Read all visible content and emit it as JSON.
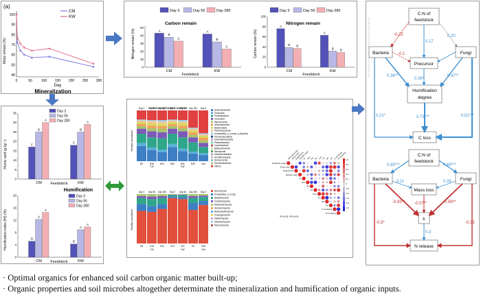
{
  "panel_letter": "(a)",
  "mineralization": {
    "title": "Mineralization",
    "ylabel": "Mass remain (%)",
    "xlabel": "Day",
    "legend": [
      "CM",
      "KW"
    ],
    "colors": {
      "CM": "#7a7ae0",
      "KW": "#e06a82"
    },
    "chart_data": {
      "type": "line",
      "x": [
        0,
        3,
        14,
        28,
        56,
        120,
        280
      ],
      "xticks": [
        0,
        50,
        100,
        150,
        200,
        250,
        300
      ],
      "yticks": [
        40,
        50,
        60,
        70,
        80,
        90,
        100
      ],
      "series": [
        {
          "name": "CM",
          "values": [
            100,
            72,
            64,
            60,
            57,
            58,
            48
          ]
        },
        {
          "name": "KW",
          "values": [
            100,
            77,
            71,
            67,
            64,
            66,
            51
          ]
        }
      ]
    }
  },
  "carbon_remain": {
    "title": "Carbon remain",
    "ylabel": "Nitrogen remain (%)",
    "xlabel": "Feedstock",
    "legend": [
      "Day 3",
      "Day 56",
      "Day 280"
    ],
    "chart_data": {
      "type": "bar",
      "categories": [
        "CM",
        "KW"
      ],
      "yticks": [
        0,
        10,
        20,
        30,
        40,
        50
      ],
      "series": [
        {
          "name": "Day 3",
          "values": [
            43,
            42
          ]
        },
        {
          "name": "Day 56",
          "values": [
            38,
            32
          ]
        },
        {
          "name": "Day 280",
          "values": [
            33,
            23
          ]
        }
      ],
      "letters": [
        [
          "A",
          "B",
          "C"
        ],
        [
          "A",
          "B",
          "C"
        ]
      ]
    }
  },
  "nitrogen_remain": {
    "title": "Nitrogen remain",
    "ylabel": "Carbon remain (%)",
    "xlabel": "Feedstock",
    "legend": [
      "Day 3",
      "Day 56",
      "Day 280"
    ],
    "chart_data": {
      "type": "bar",
      "categories": [
        "CM",
        "KW"
      ],
      "yticks": [
        0,
        20,
        40,
        60,
        80,
        100
      ],
      "series": [
        {
          "name": "Day 3",
          "values": [
            76,
            63
          ]
        },
        {
          "name": "Day 56",
          "values": [
            39,
            32
          ]
        },
        {
          "name": "Day 280",
          "values": [
            37,
            29
          ]
        }
      ],
      "letters": [
        [
          "A",
          "B",
          "B"
        ],
        [
          "A",
          "B",
          "B"
        ]
      ]
    }
  },
  "humic": {
    "ylabel": "Humic acid (g kg⁻¹)",
    "xlabel": "Feedstock",
    "legend": [
      "Day 3",
      "Day 56",
      "Day 280"
    ],
    "chart_data": {
      "type": "bar",
      "categories": [
        "CM",
        "KW"
      ],
      "yticks": [
        0,
        5,
        10,
        15,
        20,
        25,
        30,
        35
      ],
      "series": [
        {
          "name": "Day 3",
          "values": [
            17,
            18
          ]
        },
        {
          "name": "Day 56",
          "values": [
            25,
            25
          ]
        },
        {
          "name": "Day 280",
          "values": [
            30,
            29
          ]
        }
      ],
      "letters": [
        [
          "C",
          "B",
          "A"
        ],
        [
          "C",
          "B",
          "A"
        ]
      ]
    }
  },
  "humification": {
    "title": "Humification",
    "ylabel": "Humification index (HI) (%)",
    "xlabel": "Feedstock",
    "legend": [
      "Day 3",
      "Day 56",
      "Day 280"
    ],
    "chart_data": {
      "type": "bar",
      "categories": [
        "CM",
        "KW"
      ],
      "yticks": [
        0,
        4,
        8,
        12,
        16,
        20
      ],
      "series": [
        {
          "name": "Day 3",
          "values": [
            5.2,
            4.3
          ]
        },
        {
          "name": "Day 56",
          "values": [
            12.3,
            8.9
          ]
        },
        {
          "name": "Day 280",
          "values": [
            14.5,
            9.8
          ]
        }
      ],
      "letters": [
        [
          "B",
          "A",
          "A"
        ],
        [
          "B",
          "A",
          "A"
        ]
      ]
    }
  },
  "community_bacteria": {
    "title": "Community barplot analysis",
    "ylabel": "Relative abundance",
    "days": [
      "Day 3",
      "Day 56",
      "Day 280",
      "Day 3",
      "Day 56",
      "Day 280",
      "Day 3"
    ],
    "samples": [
      "B3",
      "B18",
      "B24",
      "B30",
      "B31",
      "B35",
      "Soil"
    ],
    "groups": [
      "CM",
      "KW"
    ],
    "legend": [
      "Actinobacteriota",
      "Firmicutes",
      "Proteobacteria",
      "Chloroflexi",
      "Myxococcota",
      "Acidobacteriota",
      "Bacteroidota",
      "Planctomycetota",
      "Unclassified_k_norank_d_Bacteria",
      "Verrucomicrobiota",
      "Gemmatimonadota",
      "Patescibacteria",
      "Cyanobacteria",
      "Bdellovibrionota",
      "Nitrospirota",
      "Methylomirabilota",
      "Armatimonadota",
      "Deinococcota",
      "Desulfobacterota",
      "Others"
    ]
  },
  "community_fungi": {
    "ylabel": "Relative abundance",
    "days": [
      "Day 3",
      "Day 56",
      "Day 280",
      "Day 3",
      "Day 56",
      "Day 280",
      "Day 3"
    ],
    "samples": [
      "S8",
      "S16",
      "S24",
      "S13",
      "S21",
      "S4",
      "S28"
    ],
    "groups": [
      "CM",
      "KW",
      "Soil"
    ],
    "legend": [
      "Ascomycota",
      "Unclassified_k_Fungi",
      "Basidiomycota",
      "Chytridiomycota",
      "Mortierellomycota",
      "Glomeromycota",
      "Blastocladiomycota",
      "Zoopagomycota",
      "Olpidiomycota",
      "Kickxellomycota",
      "Mucoromycota"
    ]
  },
  "correlation": {
    "row_labels": [
      "Reducing sugar",
      "Amino acid",
      "Polyphenols",
      "Soluble sugar",
      "HI",
      "TAC",
      "HA",
      "FA",
      "TOC",
      "TN",
      "DP",
      "HX",
      "C remaining",
      "N remaining"
    ],
    "col_labels": [
      "Reducing sugar",
      "Amino acid",
      "Polyphenols",
      "Soluble sugar",
      "HI",
      "TAC",
      "HA",
      "FA",
      "TOC",
      "TN",
      "DP",
      "HX",
      "C remaining",
      "N remaining"
    ],
    "scale": [
      "1.0",
      "0.8",
      "0.6",
      "0.4",
      "0.2",
      "0",
      "-0.2",
      "-0.4",
      "-0.6",
      "-0.8",
      "-1.0"
    ],
    "note": "*P<0.01  **P<0.01"
  },
  "sem_top": {
    "nodes": {
      "cn": "C:N of feedstock",
      "bacteria": "Bacteria",
      "precursor": "Precursor",
      "fungi": "Fungi",
      "humdeg": "Humification degree",
      "closs": "C loss"
    },
    "labels": [
      "-0.22",
      "0.17",
      "0.20",
      "-0.1",
      "0.36**",
      "0.36*",
      "0.47**",
      "0.21*",
      "0.73***",
      "0.51***"
    ]
  },
  "sem_bottom": {
    "nodes": {
      "cn": "C:N of feedstock",
      "bacteria": "Bacteria",
      "massloss": "Mass loss",
      "fungi": "Fungi",
      "k": "k",
      "nrel": "N release"
    },
    "labels": [
      "0.65***",
      "0.69***",
      "0.11",
      "0.09",
      "-0.93**",
      "-0.07**",
      "-0.99**",
      "-0.5*",
      "0.3",
      "-0.33"
    ]
  },
  "bullets": [
    "·  Optimal organics for enhanced soil carbon organic matter built-up;",
    "·  Organic properties and soil microbes altogether determinate the mineralization and humification of organic inputs."
  ],
  "colors": {
    "day3": "#5252b8",
    "day56": "#b8b8e6",
    "day280": "#f2b0b4",
    "arrow_blue": "#4a78c4",
    "arrow_green": "#2e9a3a",
    "sem_blue": "#3d8fd0",
    "sem_red": "#c03030"
  }
}
